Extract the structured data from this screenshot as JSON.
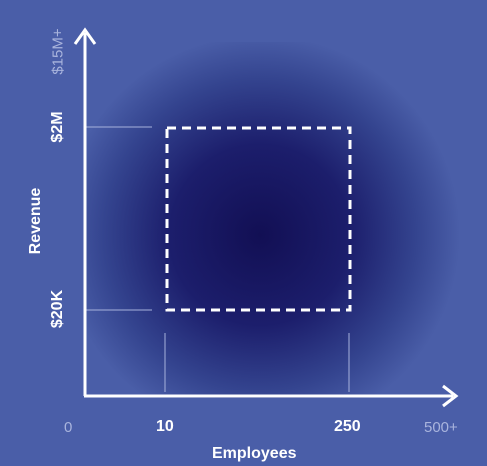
{
  "colors": {
    "background": "#4a5ea8",
    "center_dark": "#120f54",
    "axis": "#ffffff",
    "muted_text": "#a9b4dd",
    "guide_line": "#a7b2dc"
  },
  "axes": {
    "x_title": "Employees",
    "y_title": "Revenue",
    "x_ticks": {
      "origin": "0",
      "low": "10",
      "high": "250",
      "max": "500+"
    },
    "y_ticks": {
      "low": "$20K",
      "high": "$2M",
      "max": "$15M+"
    }
  },
  "target_region": {
    "employees_range": [
      "10",
      "250"
    ],
    "revenue_range": [
      "$20K",
      "$2M"
    ],
    "outline_style": "dashed"
  }
}
